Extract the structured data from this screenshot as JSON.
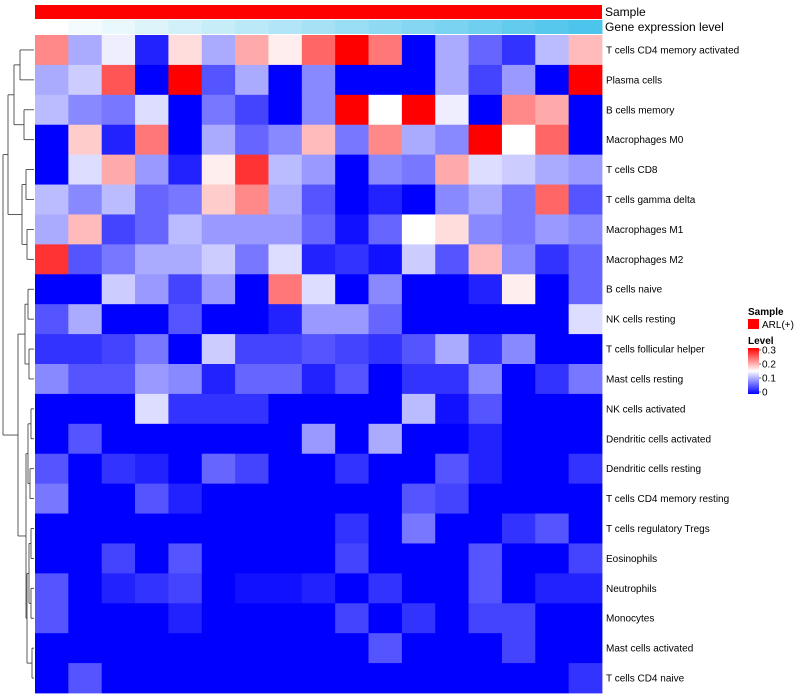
{
  "chart_data": {
    "type": "heatmap",
    "title": "",
    "annotations": [
      {
        "name": "Sample",
        "kind": "categorical",
        "color": "#ff0000"
      },
      {
        "name": "Gene expression level",
        "kind": "gradient",
        "low_color": "#ffffff",
        "high_color": "#4cc4ec"
      }
    ],
    "rows": [
      "T cells CD4 memory activated",
      "Plasma cells",
      "B cells memory",
      "Macrophages M0",
      "T cells CD8",
      "T cells gamma delta",
      "Macrophages M1",
      "Macrophages M2",
      "B cells naive",
      "NK cells resting",
      "T cells follicular helper",
      "Mast cells resting",
      "NK cells activated",
      "Dendritic cells activated",
      "Dendritic cells resting",
      "T cells CD4 memory resting",
      "T cells regulatory  Tregs",
      "Eosinophils",
      "Neutrophils",
      "Monocytes",
      "Mast cells activated",
      "T cells CD4 naive"
    ],
    "n_columns": 17,
    "values": [
      [
        0.22,
        0.1,
        0.14,
        0.02,
        0.17,
        0.1,
        0.2,
        0.16,
        0.24,
        0.3,
        0.23,
        0.0,
        0.1,
        0.06,
        0.03,
        0.11,
        0.19
      ],
      [
        0.1,
        0.12,
        0.25,
        0.0,
        0.3,
        0.05,
        0.1,
        0.0,
        0.08,
        0.0,
        0.0,
        0.0,
        0.1,
        0.04,
        0.09,
        0.0,
        0.3
      ],
      [
        0.11,
        0.08,
        0.07,
        0.13,
        0.0,
        0.07,
        0.04,
        0.0,
        0.08,
        0.3,
        0.15,
        0.3,
        0.14,
        0.0,
        0.22,
        0.2,
        0.0
      ],
      [
        0.0,
        0.18,
        0.02,
        0.23,
        0.0,
        0.1,
        0.06,
        0.08,
        0.19,
        0.07,
        0.22,
        0.1,
        0.08,
        0.3,
        0.15,
        0.24,
        0.0
      ],
      [
        0.0,
        0.13,
        0.2,
        0.09,
        0.02,
        0.16,
        0.27,
        0.11,
        0.09,
        0.0,
        0.08,
        0.07,
        0.2,
        0.13,
        0.12,
        0.1,
        0.09
      ],
      [
        0.11,
        0.08,
        0.11,
        0.06,
        0.07,
        0.18,
        0.22,
        0.1,
        0.05,
        0.0,
        0.02,
        0.0,
        0.08,
        0.1,
        0.07,
        0.24,
        0.05
      ],
      [
        0.1,
        0.19,
        0.04,
        0.06,
        0.11,
        0.09,
        0.09,
        0.09,
        0.06,
        0.01,
        0.06,
        0.15,
        0.17,
        0.08,
        0.07,
        0.09,
        0.08
      ],
      [
        0.27,
        0.05,
        0.07,
        0.1,
        0.1,
        0.12,
        0.07,
        0.13,
        0.02,
        0.03,
        0.01,
        0.12,
        0.05,
        0.19,
        0.08,
        0.03,
        0.06
      ],
      [
        0.0,
        0.0,
        0.12,
        0.09,
        0.04,
        0.09,
        0.0,
        0.23,
        0.13,
        0.0,
        0.08,
        0.0,
        0.0,
        0.02,
        0.16,
        0.0,
        0.06
      ],
      [
        0.05,
        0.1,
        0.0,
        0.0,
        0.05,
        0.0,
        0.0,
        0.02,
        0.09,
        0.09,
        0.06,
        0.0,
        0.0,
        0.0,
        0.0,
        0.0,
        0.13
      ],
      [
        0.03,
        0.03,
        0.04,
        0.07,
        0.0,
        0.12,
        0.04,
        0.04,
        0.05,
        0.04,
        0.03,
        0.05,
        0.1,
        0.03,
        0.08,
        0.0,
        0.0
      ],
      [
        0.08,
        0.05,
        0.05,
        0.09,
        0.08,
        0.02,
        0.06,
        0.06,
        0.02,
        0.05,
        0.0,
        0.03,
        0.03,
        0.08,
        0.0,
        0.03,
        0.07
      ],
      [
        0.0,
        0.0,
        0.0,
        0.13,
        0.03,
        0.03,
        0.03,
        0.0,
        0.0,
        0.0,
        0.0,
        0.11,
        0.01,
        0.05,
        0.0,
        0.0,
        0.0
      ],
      [
        0.0,
        0.05,
        0.0,
        0.0,
        0.0,
        0.0,
        0.0,
        0.0,
        0.09,
        0.0,
        0.1,
        0.0,
        0.0,
        0.02,
        0.0,
        0.0,
        0.0
      ],
      [
        0.05,
        0.0,
        0.03,
        0.02,
        0.0,
        0.06,
        0.04,
        0.0,
        0.0,
        0.03,
        0.0,
        0.0,
        0.05,
        0.02,
        0.0,
        0.0,
        0.03
      ],
      [
        0.07,
        0.0,
        0.0,
        0.05,
        0.02,
        0.0,
        0.0,
        0.0,
        0.0,
        0.0,
        0.0,
        0.05,
        0.04,
        0.0,
        0.0,
        0.0,
        0.0
      ],
      [
        0.0,
        0.0,
        0.0,
        0.0,
        0.0,
        0.0,
        0.0,
        0.0,
        0.0,
        0.03,
        0.0,
        0.07,
        0.0,
        0.0,
        0.03,
        0.05,
        0.0
      ],
      [
        0.0,
        0.0,
        0.04,
        0.0,
        0.05,
        0.0,
        0.0,
        0.0,
        0.0,
        0.04,
        0.0,
        0.0,
        0.0,
        0.05,
        0.0,
        0.0,
        0.04
      ],
      [
        0.05,
        0.0,
        0.02,
        0.03,
        0.04,
        0.0,
        0.01,
        0.01,
        0.02,
        0.0,
        0.03,
        0.0,
        0.0,
        0.05,
        0.0,
        0.02,
        0.02
      ],
      [
        0.05,
        0.0,
        0.0,
        0.0,
        0.02,
        0.0,
        0.0,
        0.0,
        0.0,
        0.04,
        0.0,
        0.03,
        0.0,
        0.04,
        0.04,
        0.0,
        0.0
      ],
      [
        0.0,
        0.0,
        0.0,
        0.0,
        0.0,
        0.0,
        0.0,
        0.0,
        0.0,
        0.0,
        0.05,
        0.0,
        0.0,
        0.0,
        0.04,
        0.0,
        0.0
      ],
      [
        0.0,
        0.05,
        0.0,
        0.0,
        0.0,
        0.0,
        0.0,
        0.0,
        0.0,
        0.0,
        0.0,
        0.0,
        0.0,
        0.0,
        0.0,
        0.0,
        0.03
      ]
    ],
    "color_scale": {
      "low": "#0000ff",
      "mid": "#ffffff",
      "high": "#ff0000",
      "min": 0,
      "mid_value": 0.15,
      "max": 0.3
    },
    "legend": {
      "position": "right",
      "sample_title": "Sample",
      "sample_entry": "ARL(+)",
      "level_title": "Level",
      "level_ticks": [
        "0.3",
        "0.2",
        "0.1",
        "0"
      ]
    }
  }
}
